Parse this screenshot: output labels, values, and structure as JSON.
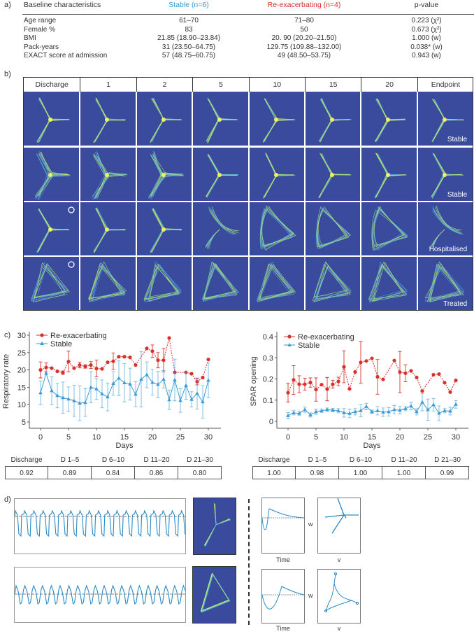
{
  "panel_labels": {
    "a": "a)",
    "b": "b)",
    "c": "c)",
    "d": "d)"
  },
  "table_a": {
    "headers": [
      "Baseline characteristics",
      "Stable (n=6)",
      "Re-exacerbating (n=4)",
      "p-value"
    ],
    "header_colors": {
      "stable": "#3a9bd5",
      "reexacerbating": "#d9302c"
    },
    "rows": [
      [
        "Age range",
        "61–70",
        "71–80",
        "0.223 (χ²)"
      ],
      [
        "Female %",
        "83",
        "50",
        "0.673 (χ²)"
      ],
      [
        "BMI",
        "21.85 (18.90–23.84)",
        "20. 90 (20.20–21.50)",
        "1.000 (w)"
      ],
      [
        "Pack-years",
        "31 (23.50–64.75)",
        "129.75 (109.88–132.00)",
        "0.038* (w)"
      ],
      [
        "EXACT score at admission",
        "57 (48.75–60.75)",
        "49 (48.50–53.75)",
        "0.943 (w)"
      ]
    ]
  },
  "grid_b": {
    "columns": [
      "Discharge",
      "1",
      "2",
      "5",
      "10",
      "15",
      "20",
      "Endpoint"
    ],
    "endpoints": [
      "Stable",
      "Stable",
      "Hospitalised",
      "Treated"
    ],
    "patterns": [
      [
        "star",
        "star",
        "star",
        "star",
        "star",
        "star",
        "star",
        "star"
      ],
      [
        "diffuse-star",
        "diffuse-star",
        "diffuse-star",
        "star",
        "star",
        "star",
        "star",
        "star"
      ],
      [
        "star",
        "star",
        "star",
        "curved",
        "loop",
        "loop",
        "loop",
        "curved"
      ],
      [
        "triangle",
        "triangle",
        "triangle",
        "triangle",
        "triangle",
        "triangle",
        "triangle",
        "triangle"
      ]
    ],
    "marked_cells": [
      [
        2,
        0
      ],
      [
        3,
        0
      ]
    ],
    "background": "#3a4b9e",
    "trace_color": "#c8ef5a"
  },
  "chart_data": [
    {
      "type": "line",
      "xlabel": "Days",
      "ylabel": "Respiratory rate",
      "ylim": [
        5,
        30
      ],
      "xlim": [
        0,
        30
      ],
      "yticks": [
        5,
        10,
        15,
        20,
        25,
        30
      ],
      "xticks": [
        0,
        5,
        10,
        15,
        20,
        25,
        30
      ],
      "legend": "top-left",
      "grid": false,
      "x": [
        0,
        1,
        2,
        3,
        4,
        5,
        6,
        7,
        8,
        9,
        10,
        11,
        12,
        13,
        14,
        15,
        16,
        17,
        18,
        19,
        20,
        21,
        22,
        23,
        24,
        25,
        26,
        27,
        28,
        29,
        30
      ],
      "series": [
        {
          "name": "Re-exacerbating",
          "color": "#d9302c",
          "marker": "circle",
          "values": [
            20,
            20.7,
            20.5,
            19.6,
            19.2,
            22.4,
            20.5,
            21.4,
            21,
            21.4,
            20.4,
            20.3,
            22.2,
            22.5,
            23.8,
            23.8,
            23.6,
            21.4,
            null,
            26.2,
            25.4,
            22.8,
            22.8,
            29.2,
            19.3,
            null,
            19.3,
            18.9,
            16.6,
            17.8,
            23
          ],
          "error": [
            2.3,
            1.3,
            0,
            0,
            0.5,
            3,
            0,
            0.8,
            0.5,
            1,
            2.4,
            0,
            0,
            2.4,
            0,
            0,
            0,
            0,
            null,
            0,
            1.8,
            2.2,
            3.4,
            0,
            0,
            null,
            0,
            0,
            0.9,
            0,
            0
          ]
        },
        {
          "name": "Stable",
          "color": "#3a9bd5",
          "marker": "triangle",
          "values": [
            13.4,
            19,
            14,
            12.6,
            12,
            11.6,
            11.1,
            10.4,
            10.6,
            15,
            14.5,
            13.1,
            12.2,
            16.1,
            17.6,
            16.3,
            15.9,
            13,
            17.3,
            18.6,
            16.4,
            15.8,
            17.3,
            11.4,
            17.1,
            11.2,
            15.5,
            11.5,
            13.2,
            10.8,
            17
          ],
          "error": [
            3.4,
            0,
            4,
            3.5,
            4.5,
            3.5,
            4.5,
            5,
            4,
            4.5,
            3,
            4,
            4,
            3.4,
            5,
            5.5,
            4.6,
            3.6,
            8,
            3.7,
            3.7,
            3.8,
            2.5,
            2.8,
            6,
            3.4,
            4,
            2.2,
            4.5,
            4.7,
            5
          ]
        }
      ],
      "table": {
        "headers": [
          "Discharge",
          "D 1–5",
          "D 6–10",
          "D 11–20",
          "D 21–30"
        ],
        "values": [
          "0.92",
          "0.89",
          "0.84",
          "0.86",
          "0.80"
        ]
      }
    },
    {
      "type": "line",
      "xlabel": "Days",
      "ylabel": "SPAR opening",
      "ylim": [
        0,
        0.4
      ],
      "xlim": [
        0,
        30
      ],
      "yticks": [
        0,
        0.1,
        0.2,
        0.3,
        0.4
      ],
      "xticks": [
        0,
        5,
        10,
        15,
        20,
        25,
        30
      ],
      "legend": "top-left",
      "grid": false,
      "x": [
        0,
        1,
        2,
        3,
        4,
        5,
        6,
        7,
        8,
        9,
        10,
        11,
        12,
        13,
        14,
        15,
        16,
        17,
        18,
        19,
        20,
        21,
        22,
        23,
        24,
        25,
        26,
        27,
        28,
        29,
        30
      ],
      "series": [
        {
          "name": "Re-exacerbating",
          "color": "#d9302c",
          "marker": "circle",
          "values": [
            0.135,
            0.195,
            0.175,
            0.175,
            0.183,
            0.15,
            0.173,
            0.152,
            0.175,
            0.188,
            0.257,
            0.153,
            0.233,
            0.278,
            0.285,
            0.297,
            0.21,
            0.198,
            null,
            0.287,
            0.232,
            0.227,
            0.238,
            0.207,
            0.143,
            null,
            0.22,
            0.223,
            0.182,
            0.138,
            0.193
          ],
          "error": [
            0.045,
            0.068,
            0.04,
            0.028,
            0.022,
            0.055,
            0,
            0.055,
            0.018,
            0.02,
            0.075,
            0,
            0,
            0.098,
            0,
            0,
            0.082,
            0,
            null,
            0,
            0.098,
            0.04,
            0,
            0,
            0,
            null,
            0,
            0,
            0,
            0,
            0
          ]
        },
        {
          "name": "Stable",
          "color": "#3a9bd5",
          "marker": "triangle",
          "values": [
            0.027,
            0.04,
            0.037,
            0.055,
            0.03,
            0.045,
            0.05,
            0.055,
            0.053,
            0.05,
            0.04,
            0.037,
            0.045,
            0.05,
            0.07,
            0.045,
            0.05,
            0.043,
            0.045,
            0.055,
            0.052,
            0.06,
            0.072,
            0.045,
            0.09,
            0.055,
            0.078,
            0.038,
            0.05,
            0.048,
            0.08
          ],
          "error": [
            0.015,
            0.01,
            0.01,
            0.012,
            0.01,
            0.012,
            0.008,
            0.008,
            0.008,
            0.01,
            0.02,
            0.02,
            0.015,
            0.028,
            0.015,
            0.008,
            0.02,
            0.02,
            0.02,
            0.02,
            0.018,
            0.01,
            0.018,
            0.015,
            0.04,
            0.05,
            0.03,
            0.035,
            0.01,
            0.018,
            0.018
          ]
        }
      ],
      "table": {
        "headers": [
          "Discharge",
          "D 1–5",
          "D 6–10",
          "D 11–20",
          "D 21–30"
        ],
        "values": [
          "1.00",
          "0.98",
          "1.00",
          "1.00",
          "0.99"
        ]
      }
    }
  ],
  "panel_d": {
    "time_label": "Time",
    "w_label": "w",
    "v_label": "v",
    "trace_color": "#2a8ac6"
  }
}
